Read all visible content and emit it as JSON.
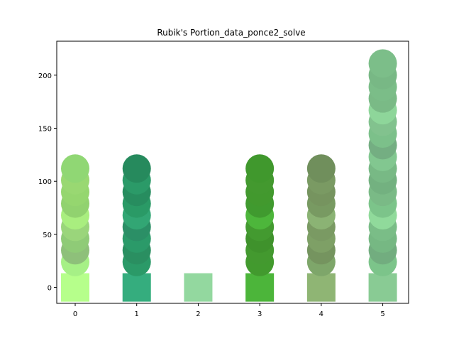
{
  "chart_data": {
    "type": "scatter",
    "title": "Rubik's Portion_data_ponce2_solve",
    "xlabel": "",
    "ylabel": "",
    "xlim": [
      -0.3,
      5.42
    ],
    "ylim": [
      -15,
      232
    ],
    "xticks": [
      0,
      1,
      2,
      3,
      4,
      5
    ],
    "yticks": [
      0,
      50,
      100,
      150,
      200
    ],
    "grid": false,
    "base_y": 0,
    "columns": [
      {
        "x": 0,
        "square_color": "#b6ff8b",
        "points": [
          {
            "y": 24,
            "color": "#a6f086"
          },
          {
            "y": 35,
            "color": "#8ec07a"
          },
          {
            "y": 46,
            "color": "#8fcb77"
          },
          {
            "y": 57,
            "color": "#9ad57b"
          },
          {
            "y": 68,
            "color": "#a9ee7f"
          },
          {
            "y": 79,
            "color": "#91d26f"
          },
          {
            "y": 90,
            "color": "#95d66f"
          },
          {
            "y": 101,
            "color": "#99d872"
          },
          {
            "y": 112,
            "color": "#90d774"
          }
        ]
      },
      {
        "x": 1,
        "square_color": "#35ad7e",
        "points": [
          {
            "y": 24,
            "color": "#2b9a68"
          },
          {
            "y": 35,
            "color": "#2a8f61"
          },
          {
            "y": 46,
            "color": "#2b9a69"
          },
          {
            "y": 57,
            "color": "#2b8f66"
          },
          {
            "y": 68,
            "color": "#32a674"
          },
          {
            "y": 79,
            "color": "#2a9a66"
          },
          {
            "y": 90,
            "color": "#278d5f"
          },
          {
            "y": 101,
            "color": "#2b9a68"
          },
          {
            "y": 112,
            "color": "#268a5d"
          }
        ]
      },
      {
        "x": 2,
        "square_color": "#93d89f",
        "points": []
      },
      {
        "x": 3,
        "square_color": "#4cb53a",
        "points": [
          {
            "y": 24,
            "color": "#429a2e"
          },
          {
            "y": 35,
            "color": "#43992f"
          },
          {
            "y": 46,
            "color": "#3f922c"
          },
          {
            "y": 57,
            "color": "#439a30"
          },
          {
            "y": 68,
            "color": "#4db63b"
          },
          {
            "y": 79,
            "color": "#409a2f"
          },
          {
            "y": 90,
            "color": "#42992e"
          },
          {
            "y": 101,
            "color": "#43992f"
          },
          {
            "y": 112,
            "color": "#40982d"
          }
        ]
      },
      {
        "x": 4,
        "square_color": "#8fb574",
        "points": [
          {
            "y": 24,
            "color": "#7ea66a"
          },
          {
            "y": 35,
            "color": "#75945f"
          },
          {
            "y": 46,
            "color": "#7ea066"
          },
          {
            "y": 57,
            "color": "#7a9a63"
          },
          {
            "y": 68,
            "color": "#8bb374"
          },
          {
            "y": 79,
            "color": "#789a62"
          },
          {
            "y": 90,
            "color": "#76945f"
          },
          {
            "y": 101,
            "color": "#7a9a63"
          },
          {
            "y": 112,
            "color": "#708f5c"
          }
        ]
      },
      {
        "x": 5,
        "square_color": "#89cb94",
        "points": [
          {
            "y": 24,
            "color": "#7cc48a"
          },
          {
            "y": 35,
            "color": "#72ad7f"
          },
          {
            "y": 46,
            "color": "#76b883"
          },
          {
            "y": 57,
            "color": "#7abd87"
          },
          {
            "y": 68,
            "color": "#90da9b"
          },
          {
            "y": 79,
            "color": "#7cc48a"
          },
          {
            "y": 90,
            "color": "#7aba86"
          },
          {
            "y": 101,
            "color": "#73b180"
          },
          {
            "y": 112,
            "color": "#78b985"
          },
          {
            "y": 123,
            "color": "#82c790"
          },
          {
            "y": 134,
            "color": "#74ae82"
          },
          {
            "y": 145,
            "color": "#7cc08a"
          },
          {
            "y": 156,
            "color": "#82c28e"
          },
          {
            "y": 167,
            "color": "#8ed69a"
          },
          {
            "y": 178,
            "color": "#7aba86"
          },
          {
            "y": 189,
            "color": "#7bbd88"
          },
          {
            "y": 200,
            "color": "#78b885"
          },
          {
            "y": 211,
            "color": "#7cbe89"
          }
        ]
      }
    ]
  }
}
